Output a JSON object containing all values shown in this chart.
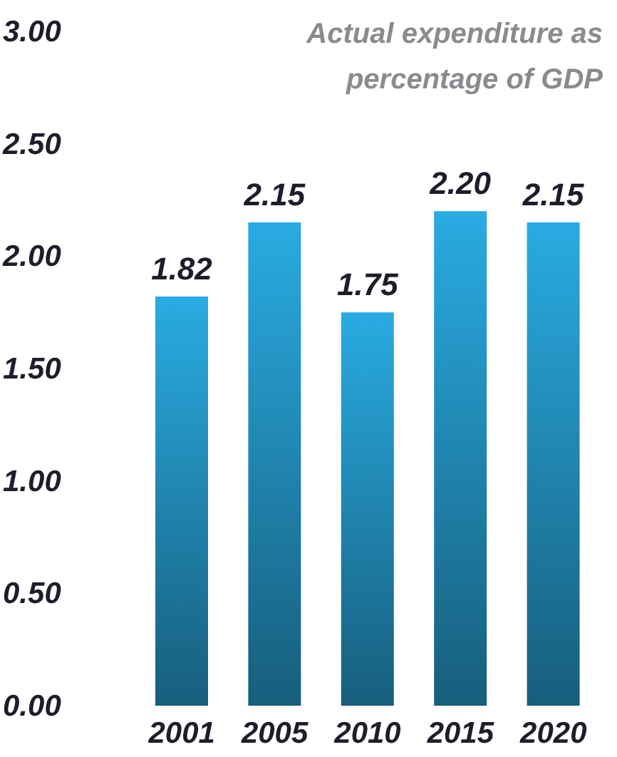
{
  "chart_data": {
    "type": "bar",
    "title": "Actual expenditure as percentage of GDP",
    "categories": [
      "2001",
      "2005",
      "2010",
      "2015",
      "2020"
    ],
    "values": [
      1.82,
      2.15,
      1.75,
      2.2,
      2.15
    ],
    "value_labels": [
      "1.82",
      "2.15",
      "1.75",
      "2.20",
      "2.15"
    ],
    "color": "#29abe2",
    "ylim": [
      0,
      3
    ],
    "yticks": [
      {
        "value": 0,
        "label": "0.00"
      },
      {
        "value": 0.5,
        "label": "0.50"
      },
      {
        "value": 1,
        "label": "1.00"
      },
      {
        "value": 1.5,
        "label": "1.50"
      },
      {
        "value": 2,
        "label": "2.00"
      },
      {
        "value": 2.5,
        "label": "2.50"
      },
      {
        "value": 3,
        "label": "3.00"
      }
    ],
    "grid": false,
    "legend": false
  }
}
